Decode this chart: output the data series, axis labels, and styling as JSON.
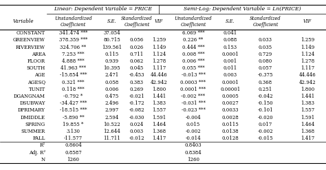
{
  "title_left": "Linear: Dependent Variable = PRICE",
  "title_right": "Semi-Log: Dependent Variable = Ln(PRICE)",
  "col_headers": [
    "Unstandardized\nCoefficient",
    "S.E.",
    "Standardized\nCoefficient",
    "VIF",
    "Unstandardized\nCoefficient",
    "S.E.",
    "Standardized\nCoefficient",
    "VIF"
  ],
  "row_labels": [
    "CONSTANT",
    "GREENVIEW",
    "RIVERVIEW",
    "AREA",
    "FLOOR",
    "SOUTH",
    "AGE",
    "AGESQ",
    "TUNIT",
    "DGANGNAM",
    "DSUBWAY",
    "DPRIMARY",
    "DMIDDLE",
    "SPRING",
    "SUMMER",
    "FALL",
    "R²",
    "Adj. R²",
    "N"
  ],
  "rows": [
    [
      "341.474 ***",
      "37.054",
      "",
      "",
      "6.069 ***",
      "0.041",
      "",
      ""
    ],
    [
      "378.359 ***",
      "80.715",
      "0.056",
      "1.259",
      "0.226 **",
      "0.088",
      "0.033",
      "1.259"
    ],
    [
      "324.706 **",
      "139.561",
      "0.026",
      "1.149",
      "0.444 ***",
      "0.153",
      "0.035",
      "1.149"
    ],
    [
      "7.253 ***",
      "0.115",
      "0.711",
      "1.124",
      "0.008 ***",
      "0.0001",
      "0.729",
      "1.124"
    ],
    [
      "4.888 ***",
      "0.939",
      "0.062",
      "1.278",
      "0.006 ***",
      "0.001",
      "0.080",
      "1.278"
    ],
    [
      "41.963 ***",
      "10.395",
      "0.045",
      "1.117",
      "0.055 ***",
      "0.011",
      "0.057",
      "1.117"
    ],
    [
      "-15.854 ***",
      "2.471",
      "-0.453",
      "44.446",
      "-0.013 ***",
      "0.003",
      "-0.375",
      "44.446"
    ],
    [
      "0.321 ***",
      "0.058",
      "0.383",
      "42.942",
      "0.0003 ***",
      "0.0001",
      "0.368",
      "42.942"
    ],
    [
      "0.118 ***",
      "0.006",
      "0.269",
      "1.800",
      "0.0001 ***",
      "0.00001",
      "0.251",
      "1.800"
    ],
    [
      "-0.792 *",
      "0.475",
      "-0.021",
      "1.441",
      "-0.002 ***",
      "0.0005",
      "-0.042",
      "1.441"
    ],
    [
      "-34.427 ***",
      "2.496",
      "-0.172",
      "1.383",
      "-0.031 ***",
      "0.0027",
      "-0.150",
      "1.383"
    ],
    [
      "-18.515 ***",
      "2.997",
      "-0.082",
      "1.557",
      "-0.023 ***",
      "0.0033",
      "-0.101",
      "1.557"
    ],
    [
      "-5.890 **",
      "2.594",
      "-0.030",
      "1.591",
      "-0.004",
      "0.0028",
      "-0.020",
      "1.591"
    ],
    [
      "19.855 *",
      "10.522",
      "0.024",
      "1.464",
      "0.015",
      "0.0115",
      "0.017",
      "1.464"
    ],
    [
      "3.130",
      "12.644",
      "0.003",
      "1.368",
      "-0.002",
      "0.0138",
      "-0.002",
      "1.368"
    ],
    [
      "-11.577",
      "11.711",
      "-0.012",
      "1.417",
      "-0.014",
      "0.0128",
      "-0.015",
      "1.417"
    ],
    [
      "0.8604",
      "",
      "",
      "",
      "0.8403",
      "",
      "",
      ""
    ],
    [
      "0.8587",
      "",
      "",
      "",
      "0.8384",
      "",
      "",
      ""
    ],
    [
      "1260",
      "",
      "",
      "",
      "1260",
      "",
      "",
      ""
    ]
  ],
  "bg_color": "#ffffff",
  "text_color": "#000000",
  "font_size": 5.0,
  "header_font_size": 5.2,
  "title_font_size": 5.5
}
